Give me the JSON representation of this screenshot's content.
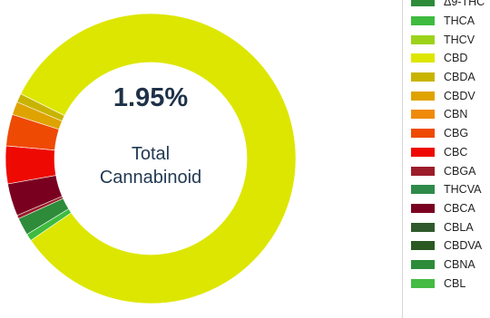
{
  "chart_data": {
    "type": "pie",
    "donut": true,
    "center": {
      "value": "1.95%",
      "caption_lines": [
        "Total",
        "Cannabinoid"
      ]
    },
    "legend": {
      "placement": "right",
      "entries": [
        {
          "name": "Δ9-THC",
          "color": "#2e8b3a"
        },
        {
          "name": "THCA",
          "color": "#3fbb3f"
        },
        {
          "name": "THCV",
          "color": "#9cd31a"
        },
        {
          "name": "CBD",
          "color": "#dde600"
        },
        {
          "name": "CBDA",
          "color": "#c8b400"
        },
        {
          "name": "CBDV",
          "color": "#dfa300"
        },
        {
          "name": "CBN",
          "color": "#f08a0a"
        },
        {
          "name": "CBG",
          "color": "#ee4a04"
        },
        {
          "name": "CBC",
          "color": "#ee0a02"
        },
        {
          "name": "CBGA",
          "color": "#9c1c2a"
        },
        {
          "name": "THCVA",
          "color": "#2e8b4a"
        },
        {
          "name": "CBCA",
          "color": "#7a0020"
        },
        {
          "name": "CBLA",
          "color": "#2f5a2a"
        },
        {
          "name": "CBDVA",
          "color": "#2a5a22"
        },
        {
          "name": "CBNA",
          "color": "#2e8b3a"
        },
        {
          "name": "CBL",
          "color": "#44bb44"
        }
      ]
    },
    "slices": [
      {
        "name": "CBD",
        "value": 85.0,
        "color": "#dde600"
      },
      {
        "name": "THCA",
        "value": 0.8,
        "color": "#3fbb3f"
      },
      {
        "name": "Δ9-THC",
        "value": 2.0,
        "color": "#2e8b3a"
      },
      {
        "name": "CBGA",
        "value": 0.4,
        "color": "#9c1c2a"
      },
      {
        "name": "CBCA",
        "value": 3.7,
        "color": "#7a0020"
      },
      {
        "name": "CBC",
        "value": 4.3,
        "color": "#ee0a02"
      },
      {
        "name": "CBG",
        "value": 3.6,
        "color": "#ee4a04"
      },
      {
        "name": "CBDV",
        "value": 1.5,
        "color": "#dfa300"
      },
      {
        "name": "CBDA",
        "value": 1.0,
        "color": "#c8b400"
      }
    ]
  }
}
